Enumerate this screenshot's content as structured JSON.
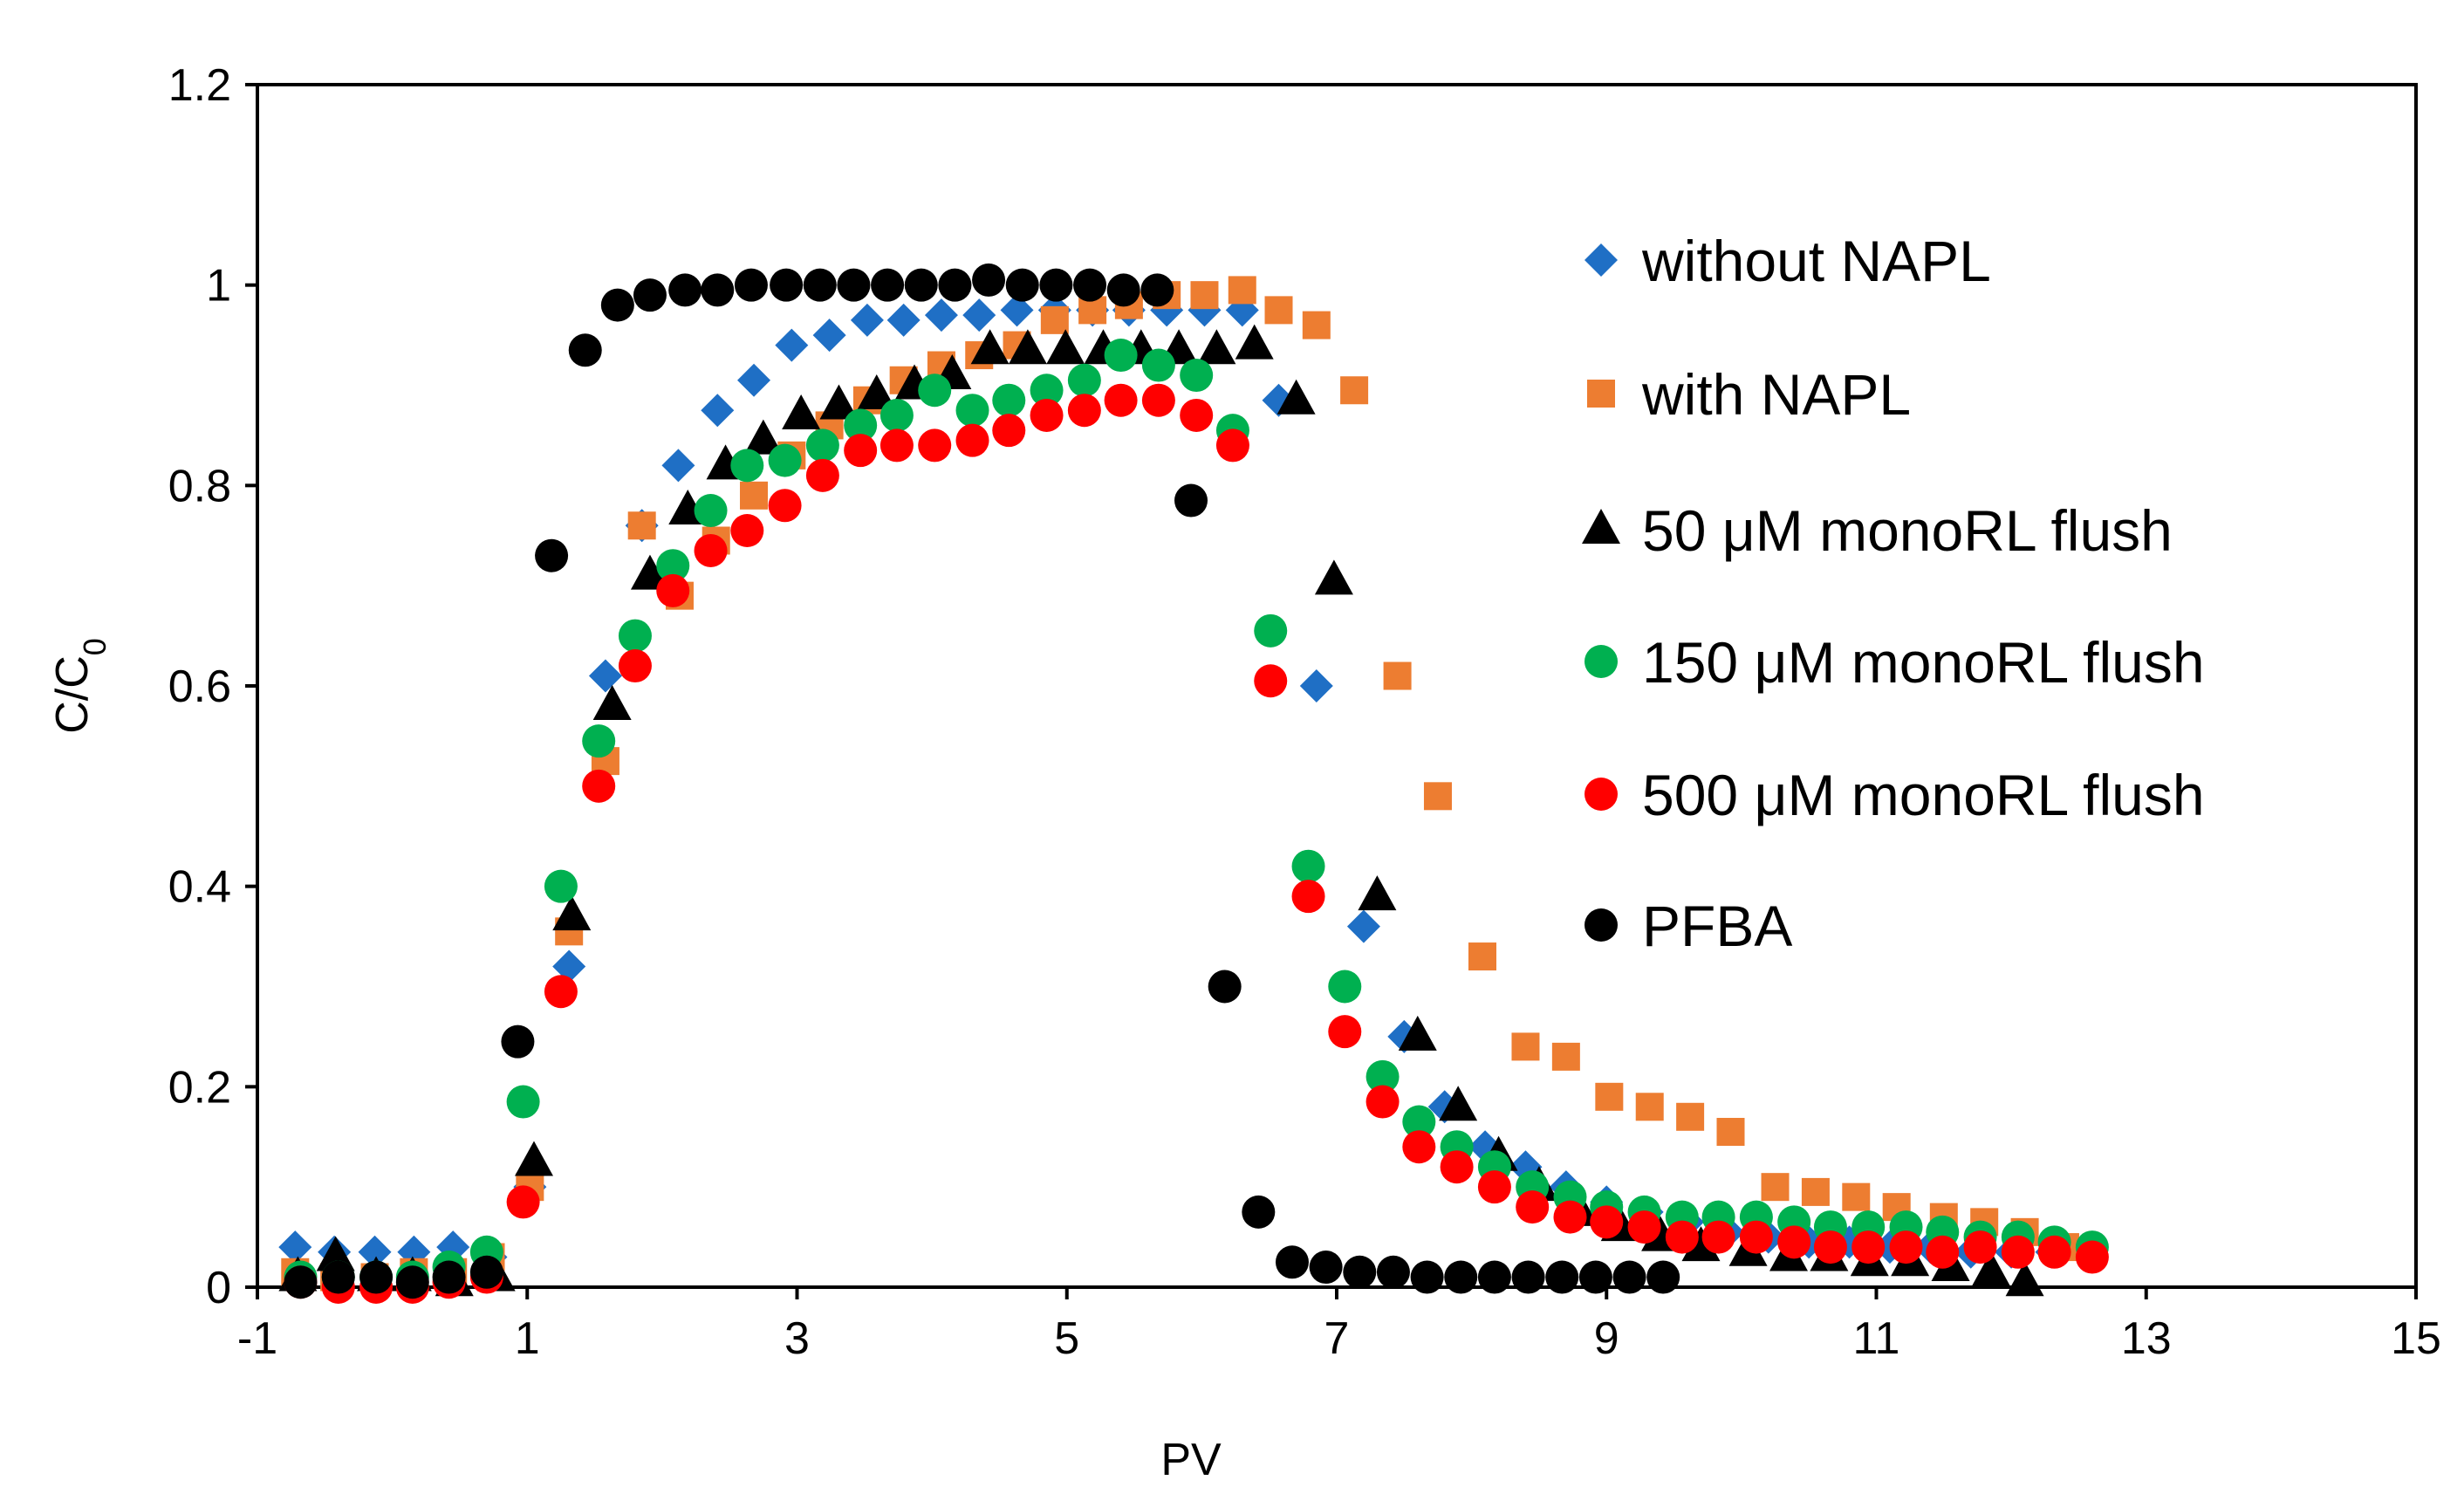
{
  "chart_data": {
    "type": "scatter",
    "title": "",
    "xlabel": "PV",
    "ylabel_main": "C/C",
    "ylabel_sub": "0",
    "xlim": [
      -1,
      15
    ],
    "ylim": [
      0,
      1.2
    ],
    "xticks": [
      "-1",
      "1",
      "3",
      "5",
      "7",
      "9",
      "11",
      "13",
      "15"
    ],
    "yticks": [
      "0",
      "0.2",
      "0.4",
      "0.6",
      "0.8",
      "1",
      "1.2"
    ],
    "legend_position": "right",
    "series": [
      {
        "name": "without NAPL",
        "marker": "diamond",
        "color": "#1f6fc5",
        "x": [
          -0.72,
          -0.43,
          -0.13,
          0.16,
          0.45,
          0.73,
          1.02,
          1.31,
          1.58,
          1.85,
          2.12,
          2.41,
          2.68,
          2.96,
          3.24,
          3.52,
          3.79,
          4.07,
          4.35,
          4.63,
          4.91,
          5.19,
          5.46,
          5.74,
          6.02,
          6.3,
          6.57,
          6.85,
          7.2,
          7.5,
          7.8,
          8.1,
          8.4,
          8.7,
          9.0,
          9.3,
          9.6,
          9.9,
          10.2,
          10.5,
          10.8,
          11.1,
          11.4,
          11.7,
          12.0,
          12.3
        ],
        "y": [
          0.04,
          0.035,
          0.035,
          0.035,
          0.04,
          0.03,
          0.1,
          0.32,
          0.61,
          0.76,
          0.82,
          0.875,
          0.905,
          0.94,
          0.95,
          0.965,
          0.965,
          0.97,
          0.97,
          0.975,
          0.975,
          0.975,
          0.975,
          0.975,
          0.975,
          0.975,
          0.885,
          0.6,
          0.36,
          0.25,
          0.18,
          0.14,
          0.12,
          0.1,
          0.085,
          0.075,
          0.065,
          0.055,
          0.05,
          0.045,
          0.045,
          0.04,
          0.04,
          0.035,
          0.035,
          0.035
        ]
      },
      {
        "name": "with NAPL",
        "marker": "square",
        "color": "#ed7d31",
        "x": [
          -0.72,
          -0.43,
          -0.13,
          0.16,
          0.45,
          0.73,
          1.02,
          1.31,
          1.58,
          1.85,
          2.13,
          2.4,
          2.68,
          2.96,
          3.24,
          3.52,
          3.79,
          4.07,
          4.35,
          4.63,
          4.91,
          5.19,
          5.46,
          5.74,
          6.02,
          6.3,
          6.57,
          6.85,
          7.13,
          7.45,
          7.75,
          8.08,
          8.4,
          8.7,
          9.02,
          9.32,
          9.62,
          9.92,
          10.25,
          10.55,
          10.85,
          11.15,
          11.5,
          11.8,
          12.1,
          12.4
        ],
        "y": [
          0.015,
          0.01,
          0.01,
          0.015,
          0.015,
          0.03,
          0.1,
          0.355,
          0.525,
          0.76,
          0.69,
          0.745,
          0.79,
          0.83,
          0.86,
          0.885,
          0.905,
          0.92,
          0.93,
          0.94,
          0.965,
          0.975,
          0.98,
          0.99,
          0.99,
          0.995,
          0.975,
          0.96,
          0.895,
          0.61,
          0.49,
          0.33,
          0.24,
          0.23,
          0.19,
          0.18,
          0.17,
          0.155,
          0.1,
          0.095,
          0.09,
          0.08,
          0.07,
          0.065,
          0.055,
          0.04
        ]
      },
      {
        "name": "50 μM monoRL flush",
        "marker": "triangle",
        "color": "#000000",
        "x": [
          -0.7,
          -0.42,
          -0.12,
          0.15,
          0.46,
          0.77,
          1.05,
          1.33,
          1.63,
          1.91,
          2.19,
          2.47,
          2.75,
          3.03,
          3.31,
          3.59,
          3.87,
          4.15,
          4.43,
          4.71,
          4.99,
          5.27,
          5.55,
          5.83,
          6.11,
          6.39,
          6.7,
          6.98,
          7.3,
          7.6,
          7.9,
          8.2,
          8.5,
          8.8,
          9.1,
          9.4,
          9.7,
          10.05,
          10.35,
          10.65,
          10.95,
          11.25,
          11.55,
          11.85,
          12.1
        ],
        "y": [
          0.01,
          0.03,
          0.01,
          0.01,
          0.005,
          0.01,
          0.125,
          0.37,
          0.58,
          0.71,
          0.775,
          0.82,
          0.845,
          0.87,
          0.88,
          0.89,
          0.9,
          0.91,
          0.935,
          0.935,
          0.935,
          0.935,
          0.935,
          0.935,
          0.935,
          0.94,
          0.885,
          0.705,
          0.39,
          0.25,
          0.18,
          0.13,
          0.1,
          0.075,
          0.06,
          0.05,
          0.04,
          0.035,
          0.03,
          0.03,
          0.025,
          0.025,
          0.02,
          0.015,
          0.005
        ]
      },
      {
        "name": "150 μM monoRL flush",
        "marker": "circle",
        "color": "#00b050",
        "x": [
          -0.68,
          -0.4,
          -0.12,
          0.15,
          0.42,
          0.7,
          0.97,
          1.25,
          1.53,
          1.8,
          2.08,
          2.36,
          2.63,
          2.91,
          3.19,
          3.47,
          3.74,
          4.02,
          4.3,
          4.57,
          4.85,
          5.13,
          5.4,
          5.68,
          5.96,
          6.23,
          6.51,
          6.79,
          7.06,
          7.34,
          7.61,
          7.89,
          8.17,
          8.45,
          8.73,
          9.0,
          9.28,
          9.56,
          9.83,
          10.11,
          10.39,
          10.66,
          10.94,
          11.22,
          11.49,
          11.77,
          12.05,
          12.32,
          12.6
        ],
        "y": [
          0.01,
          0.01,
          0.01,
          0.01,
          0.02,
          0.035,
          0.185,
          0.4,
          0.545,
          0.65,
          0.72,
          0.775,
          0.82,
          0.825,
          0.84,
          0.86,
          0.87,
          0.895,
          0.875,
          0.885,
          0.895,
          0.905,
          0.93,
          0.92,
          0.91,
          0.855,
          0.655,
          0.42,
          0.3,
          0.21,
          0.165,
          0.14,
          0.12,
          0.1,
          0.09,
          0.08,
          0.075,
          0.07,
          0.07,
          0.07,
          0.065,
          0.06,
          0.06,
          0.06,
          0.055,
          0.05,
          0.05,
          0.045,
          0.04
        ]
      },
      {
        "name": "500 μM monoRL flush",
        "marker": "circle",
        "color": "#ff0000",
        "x": [
          -0.68,
          -0.4,
          -0.12,
          0.15,
          0.42,
          0.7,
          0.97,
          1.25,
          1.53,
          1.8,
          2.08,
          2.36,
          2.63,
          2.91,
          3.19,
          3.47,
          3.74,
          4.02,
          4.3,
          4.57,
          4.85,
          5.13,
          5.4,
          5.68,
          5.96,
          6.23,
          6.51,
          6.79,
          7.06,
          7.34,
          7.61,
          7.89,
          8.17,
          8.45,
          8.73,
          9.0,
          9.28,
          9.56,
          9.83,
          10.11,
          10.39,
          10.66,
          10.94,
          11.22,
          11.49,
          11.77,
          12.05,
          12.32,
          12.6
        ],
        "y": [
          0.005,
          0.0,
          0.0,
          0.0,
          0.005,
          0.01,
          0.085,
          0.295,
          0.5,
          0.62,
          0.695,
          0.735,
          0.755,
          0.78,
          0.81,
          0.835,
          0.84,
          0.84,
          0.845,
          0.855,
          0.87,
          0.875,
          0.885,
          0.885,
          0.87,
          0.84,
          0.605,
          0.39,
          0.255,
          0.185,
          0.14,
          0.12,
          0.1,
          0.08,
          0.07,
          0.065,
          0.06,
          0.05,
          0.05,
          0.05,
          0.045,
          0.04,
          0.04,
          0.04,
          0.035,
          0.04,
          0.035,
          0.035,
          0.03
        ]
      },
      {
        "name": "PFBA",
        "marker": "circle",
        "color": "#000000",
        "x": [
          -0.68,
          -0.4,
          -0.12,
          0.15,
          0.42,
          0.7,
          0.93,
          1.18,
          1.43,
          1.67,
          1.91,
          2.17,
          2.41,
          2.66,
          2.92,
          3.17,
          3.42,
          3.67,
          3.92,
          4.17,
          4.42,
          4.67,
          4.92,
          5.17,
          5.42,
          5.67,
          5.92,
          6.17,
          6.42,
          6.67,
          6.92,
          7.17,
          7.42,
          7.67,
          7.92,
          8.17,
          8.42,
          8.67,
          8.92,
          9.17,
          9.42
        ],
        "y": [
          0.005,
          0.01,
          0.01,
          0.005,
          0.01,
          0.015,
          0.245,
          0.73,
          0.935,
          0.98,
          0.99,
          0.995,
          0.995,
          1.0,
          1.0,
          1.0,
          1.0,
          1.0,
          1.0,
          1.0,
          1.005,
          1.0,
          1.0,
          1.0,
          0.995,
          0.995,
          0.785,
          0.3,
          0.075,
          0.025,
          0.02,
          0.015,
          0.015,
          0.01,
          0.01,
          0.01,
          0.01,
          0.01,
          0.01,
          0.01,
          0.01
        ]
      }
    ]
  }
}
